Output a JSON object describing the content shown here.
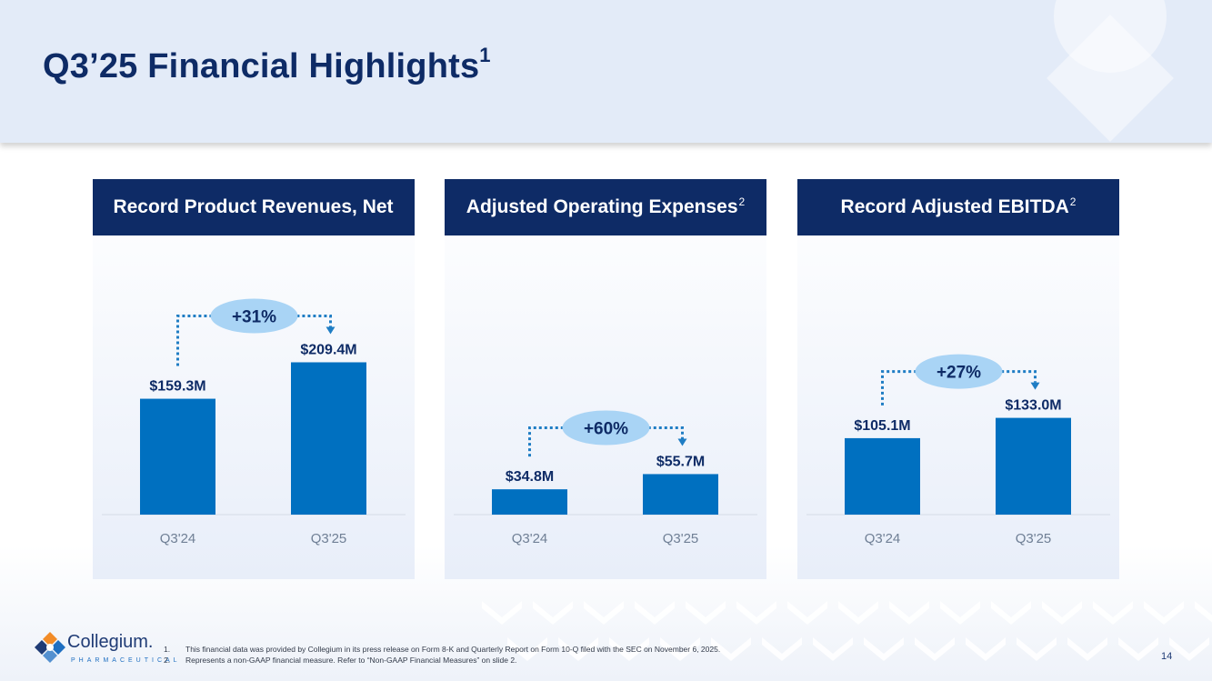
{
  "title": {
    "text": "Q3’25 Financial Highlights",
    "sup": "1"
  },
  "colors": {
    "navy": "#0e2b66",
    "bar": "#0070c0",
    "bubble": "#a9d4f5",
    "connector": "#1f7dc4"
  },
  "chart_data": [
    {
      "type": "bar",
      "title": "Record Product Revenues, Net",
      "title_sup": "",
      "categories": [
        "Q3'24",
        "Q3'25"
      ],
      "values": [
        159.3,
        209.4
      ],
      "labels": [
        "$159.3M",
        "$209.4M"
      ],
      "change": "+31%",
      "ylim": [
        0,
        225
      ]
    },
    {
      "type": "bar",
      "title": "Adjusted Operating Expenses",
      "title_sup": "2",
      "categories": [
        "Q3'24",
        "Q3'25"
      ],
      "values": [
        34.8,
        55.7
      ],
      "labels": [
        "$34.8M",
        "$55.7M"
      ],
      "change": "+60%",
      "ylim": [
        0,
        225
      ]
    },
    {
      "type": "bar",
      "title": "Record Adjusted EBITDA",
      "title_sup": "2",
      "categories": [
        "Q3'24",
        "Q3'25"
      ],
      "values": [
        105.1,
        133.0
      ],
      "labels": [
        "$105.1M",
        "$133.0M"
      ],
      "change": "+27%",
      "ylim": [
        0,
        225
      ]
    }
  ],
  "footer": {
    "logo_name": "Collegium.",
    "logo_sub": "PHARMACEUTICAL",
    "footnotes": [
      {
        "num": "1.",
        "text": "This financial data was provided by Collegium in its press release on Form 8-K and Quarterly Report on Form 10-Q filed with the SEC on November 6, 2025."
      },
      {
        "num": "2.",
        "text": "Represents a non-GAAP financial measure. Refer to “Non-GAAP Financial Measures” on slide 2."
      }
    ],
    "page_number": "14"
  }
}
